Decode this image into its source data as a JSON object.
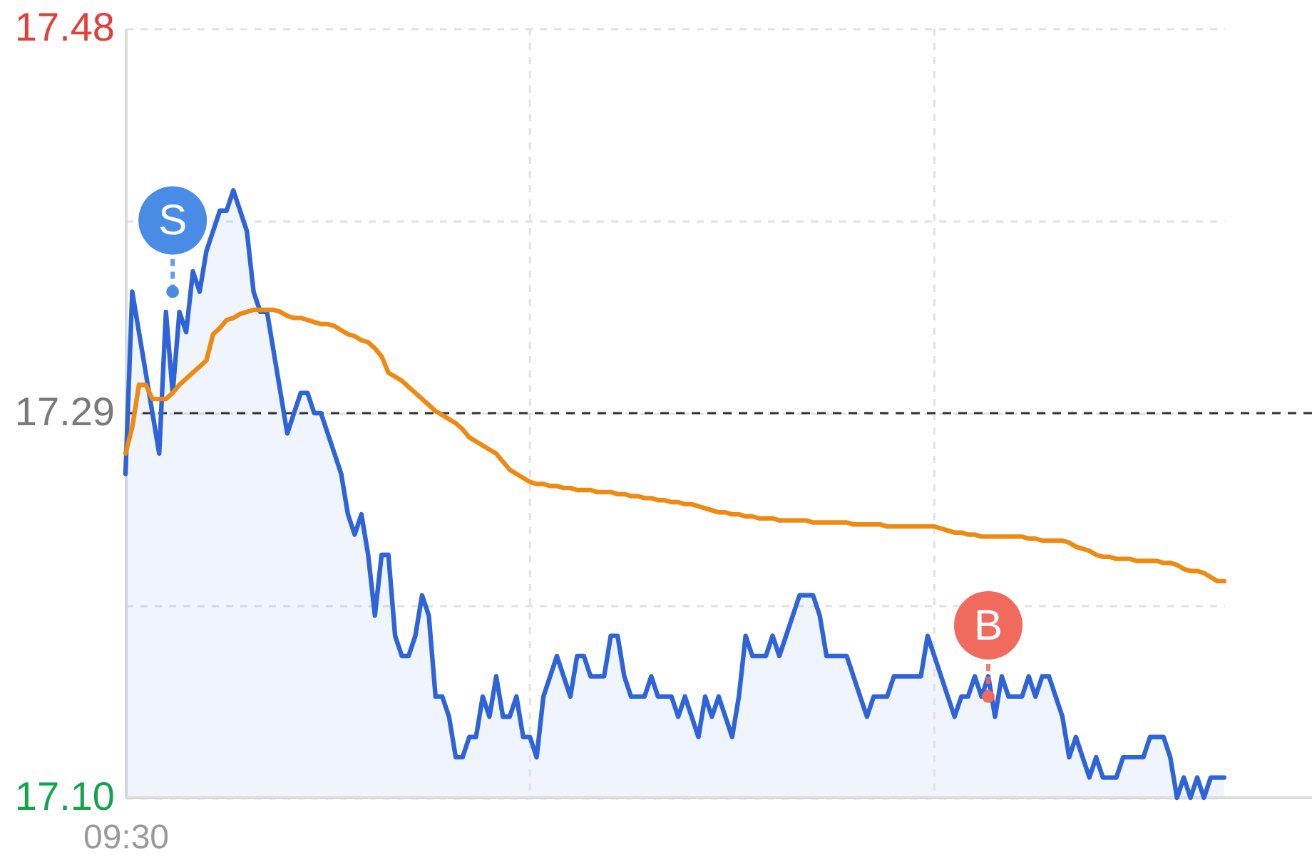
{
  "chart_data": {
    "type": "line",
    "categories": [
      "09:30",
      null,
      null,
      null,
      null,
      null,
      null,
      null,
      null,
      null,
      null,
      null,
      null,
      null,
      null,
      null,
      null,
      null,
      null,
      null,
      null,
      null,
      null,
      null,
      null,
      null,
      null,
      null,
      null,
      null,
      null,
      null,
      null,
      null,
      null,
      null,
      null,
      null,
      null,
      null,
      null,
      null,
      null,
      null,
      null,
      null,
      null,
      null,
      null,
      null,
      null,
      null,
      null,
      null,
      null,
      null,
      null,
      null,
      null,
      null,
      null,
      null,
      null,
      null,
      null,
      null,
      null,
      null,
      null,
      null,
      null,
      null,
      null,
      null,
      null,
      null,
      null,
      null,
      null,
      null,
      null,
      null,
      null,
      null,
      null,
      null,
      null,
      null,
      null,
      null,
      null,
      null,
      null,
      null,
      null,
      null,
      null,
      null,
      null,
      null,
      null,
      null,
      null,
      null,
      null,
      null,
      null,
      null,
      null,
      null,
      null,
      null,
      null,
      null,
      null,
      null,
      null,
      null,
      null,
      null,
      null,
      null,
      null,
      null,
      null,
      null,
      null,
      null,
      null,
      null,
      null,
      null,
      null,
      null,
      null,
      null,
      null,
      null,
      null,
      null,
      null,
      null,
      null,
      null,
      null,
      null,
      null,
      null,
      null,
      null,
      null,
      null,
      null,
      null,
      null,
      null,
      null,
      null,
      null,
      null,
      null,
      null,
      null,
      null
    ],
    "ylim": [
      17.1,
      17.48
    ],
    "yticks": [
      {
        "value": 17.1,
        "label": "17.10"
      },
      {
        "value": 17.195,
        "label": null
      },
      {
        "value": 17.29,
        "label": "17.29"
      },
      {
        "value": 17.385,
        "label": null
      },
      {
        "value": 17.48,
        "label": "17.48"
      }
    ],
    "grid": "y",
    "ref_lines": [
      {
        "axis": "y",
        "value": 17.29,
        "color": "#333333",
        "line_style": "dashed"
      }
    ],
    "series": [
      {
        "type": "area",
        "color": "#2e64d8",
        "values": [
          17.26,
          17.35,
          17.33,
          17.31,
          17.29,
          17.27,
          17.34,
          17.3,
          17.34,
          17.33,
          17.36,
          17.35,
          17.37,
          17.38,
          17.39,
          17.39,
          17.4,
          17.39,
          17.38,
          17.35,
          17.34,
          17.34,
          17.32,
          17.3,
          17.28,
          17.29,
          17.3,
          17.3,
          17.29,
          17.29,
          17.28,
          17.27,
          17.26,
          17.24,
          17.23,
          17.24,
          17.22,
          17.19,
          17.22,
          17.22,
          17.18,
          17.17,
          17.17,
          17.18,
          17.2,
          17.19,
          17.15,
          17.15,
          17.14,
          17.12,
          17.12,
          17.13,
          17.13,
          17.15,
          17.14,
          17.16,
          17.14,
          17.14,
          17.15,
          17.13,
          17.13,
          17.12,
          17.15,
          17.16,
          17.17,
          17.16,
          17.15,
          17.17,
          17.17,
          17.16,
          17.16,
          17.16,
          17.18,
          17.18,
          17.16,
          17.15,
          17.15,
          17.15,
          17.16,
          17.15,
          17.15,
          17.15,
          17.14,
          17.15,
          17.14,
          17.13,
          17.15,
          17.14,
          17.15,
          17.14,
          17.13,
          17.15,
          17.18,
          17.17,
          17.17,
          17.17,
          17.18,
          17.17,
          17.18,
          17.19,
          17.2,
          17.2,
          17.2,
          17.19,
          17.17,
          17.17,
          17.17,
          17.17,
          17.16,
          17.15,
          17.14,
          17.15,
          17.15,
          17.15,
          17.16,
          17.16,
          17.16,
          17.16,
          17.16,
          17.18,
          17.17,
          17.16,
          17.15,
          17.14,
          17.15,
          17.15,
          17.16,
          17.15,
          17.16,
          17.14,
          17.16,
          17.15,
          17.15,
          17.15,
          17.16,
          17.15,
          17.16,
          17.16,
          17.15,
          17.14,
          17.12,
          17.13,
          17.12,
          17.11,
          17.12,
          17.11,
          17.11,
          17.11,
          17.12,
          17.12,
          17.12,
          17.12,
          17.13,
          17.13,
          17.13,
          17.12,
          17.1,
          17.11,
          17.1,
          17.11,
          17.1,
          17.11,
          17.11,
          17.11
        ]
      },
      {
        "color": "#ee8a12",
        "values": [
          17.27,
          17.283,
          17.304,
          17.304,
          17.297,
          17.297,
          17.297,
          17.3,
          17.304,
          17.307,
          17.31,
          17.313,
          17.316,
          17.329,
          17.332,
          17.336,
          17.337,
          17.339,
          17.34,
          17.341,
          17.341,
          17.341,
          17.341,
          17.34,
          17.338,
          17.337,
          17.337,
          17.336,
          17.335,
          17.334,
          17.334,
          17.333,
          17.331,
          17.329,
          17.328,
          17.326,
          17.325,
          17.322,
          17.318,
          17.31,
          17.308,
          17.306,
          17.303,
          17.3,
          17.297,
          17.294,
          17.291,
          17.289,
          17.287,
          17.285,
          17.282,
          17.278,
          17.276,
          17.274,
          17.272,
          17.27,
          17.266,
          17.262,
          17.26,
          17.258,
          17.256,
          17.255,
          17.255,
          17.254,
          17.254,
          17.253,
          17.253,
          17.252,
          17.252,
          17.252,
          17.251,
          17.251,
          17.251,
          17.25,
          17.25,
          17.249,
          17.249,
          17.248,
          17.248,
          17.247,
          17.247,
          17.246,
          17.246,
          17.245,
          17.245,
          17.244,
          17.243,
          17.242,
          17.241,
          17.241,
          17.24,
          17.24,
          17.239,
          17.239,
          17.238,
          17.238,
          17.238,
          17.237,
          17.237,
          17.237,
          17.237,
          17.237,
          17.236,
          17.236,
          17.236,
          17.236,
          17.236,
          17.236,
          17.235,
          17.235,
          17.235,
          17.235,
          17.235,
          17.234,
          17.234,
          17.234,
          17.234,
          17.234,
          17.234,
          17.234,
          17.234,
          17.233,
          17.232,
          17.231,
          17.231,
          17.23,
          17.23,
          17.229,
          17.229,
          17.229,
          17.229,
          17.229,
          17.229,
          17.229,
          17.228,
          17.228,
          17.227,
          17.227,
          17.227,
          17.227,
          17.226,
          17.224,
          17.223,
          17.222,
          17.22,
          17.219,
          17.219,
          17.218,
          17.218,
          17.218,
          17.217,
          17.217,
          17.217,
          17.217,
          17.216,
          17.216,
          17.215,
          17.213,
          17.212,
          17.212,
          17.211,
          17.209,
          17.207,
          17.207
        ]
      },
      {
        "type": "scatter",
        "name": "S",
        "color": "#4a8be6",
        "marker": "circle",
        "values": [
          null,
          null,
          null,
          null,
          null,
          null,
          null,
          17.35,
          null,
          null,
          null,
          null,
          null,
          null,
          null,
          null,
          null,
          null,
          null,
          null,
          null,
          null,
          null,
          null,
          null,
          null,
          null,
          null,
          null,
          null,
          null,
          null,
          null,
          null,
          null,
          null,
          null,
          null,
          null,
          null,
          null,
          null,
          null,
          null,
          null,
          null,
          null,
          null,
          null,
          null,
          null,
          null,
          null,
          null,
          null,
          null,
          null,
          null,
          null,
          null,
          null,
          null,
          null,
          null,
          null,
          null,
          null,
          null,
          null,
          null,
          null,
          null,
          null,
          null,
          null,
          null,
          null,
          null,
          null,
          null,
          null,
          null,
          null,
          null,
          null,
          null,
          null,
          null,
          null,
          null,
          null,
          null,
          null,
          null,
          null,
          null,
          null,
          null,
          null,
          null,
          null,
          null,
          null,
          null,
          null,
          null,
          null,
          null,
          null,
          null,
          null,
          null,
          null,
          null,
          null,
          null,
          null,
          null,
          null,
          null,
          null,
          null,
          null,
          null,
          null,
          null,
          null,
          null,
          null,
          null,
          null,
          null,
          null,
          null,
          null,
          null,
          null,
          null,
          null,
          null,
          null,
          null,
          null,
          null,
          null,
          null,
          null,
          null,
          null,
          null,
          null,
          null,
          null,
          null,
          null,
          null,
          null,
          null,
          null,
          null,
          null,
          null,
          null,
          null
        ]
      },
      {
        "type": "scatter",
        "name": "B",
        "color": "#f06a5e",
        "marker": "circle",
        "values": [
          null,
          null,
          null,
          null,
          null,
          null,
          null,
          null,
          null,
          null,
          null,
          null,
          null,
          null,
          null,
          null,
          null,
          null,
          null,
          null,
          null,
          null,
          null,
          null,
          null,
          null,
          null,
          null,
          null,
          null,
          null,
          null,
          null,
          null,
          null,
          null,
          null,
          null,
          null,
          null,
          null,
          null,
          null,
          null,
          null,
          null,
          null,
          null,
          null,
          null,
          null,
          null,
          null,
          null,
          null,
          null,
          null,
          null,
          null,
          null,
          null,
          null,
          null,
          null,
          null,
          null,
          null,
          null,
          null,
          null,
          null,
          null,
          null,
          null,
          null,
          null,
          null,
          null,
          null,
          null,
          null,
          null,
          null,
          null,
          null,
          null,
          null,
          null,
          null,
          null,
          null,
          null,
          null,
          null,
          null,
          null,
          null,
          null,
          null,
          null,
          null,
          null,
          null,
          null,
          null,
          null,
          null,
          null,
          null,
          null,
          null,
          null,
          null,
          null,
          null,
          null,
          null,
          null,
          null,
          null,
          null,
          null,
          null,
          null,
          null,
          null,
          null,
          null,
          17.15,
          null,
          null,
          null,
          null,
          null,
          null,
          null,
          null,
          null,
          null,
          null,
          null,
          null,
          null,
          null,
          null,
          null,
          null,
          null,
          null,
          null,
          null,
          null,
          null,
          null,
          null,
          null,
          null,
          null,
          null,
          null,
          null,
          null,
          null,
          null
        ]
      }
    ]
  }
}
